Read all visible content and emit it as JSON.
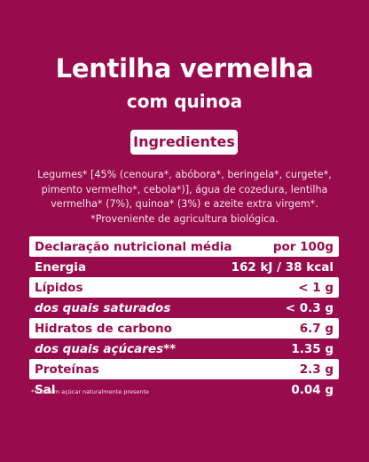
{
  "title": "Lentilha vermelha",
  "subtitle": "com quinoa",
  "ingredients": {
    "heading": "Ingredientes",
    "lines": [
      "Legumes* [45% (cenoura*, abóbora*, beringela*, curgete*,",
      "pimento vermelho*, cebola*)], água de cozedura, lentilha",
      "vermelha* (7%), quinoa* (3%) e azeite extra virgem*.",
      "*Proveniente de agricultura biológica."
    ]
  },
  "table": {
    "rows": [
      [
        "Declaração nutricional média",
        "por 100g"
      ],
      [
        "Energia",
        "162 kJ / 38 kcal"
      ],
      [
        "Lípidos",
        "< 1 g"
      ],
      [
        "dos quais saturados",
        "< 0.3 g"
      ],
      [
        "Hidratos de carbono",
        "6.7 g"
      ],
      [
        "dos quais açúcares**",
        "1.35 g"
      ],
      [
        "Proteínas",
        "2.3 g"
      ],
      [
        "Sal",
        "0.04 g"
      ]
    ],
    "footnote": "**Contém açúcar naturalmente presente"
  }
}
